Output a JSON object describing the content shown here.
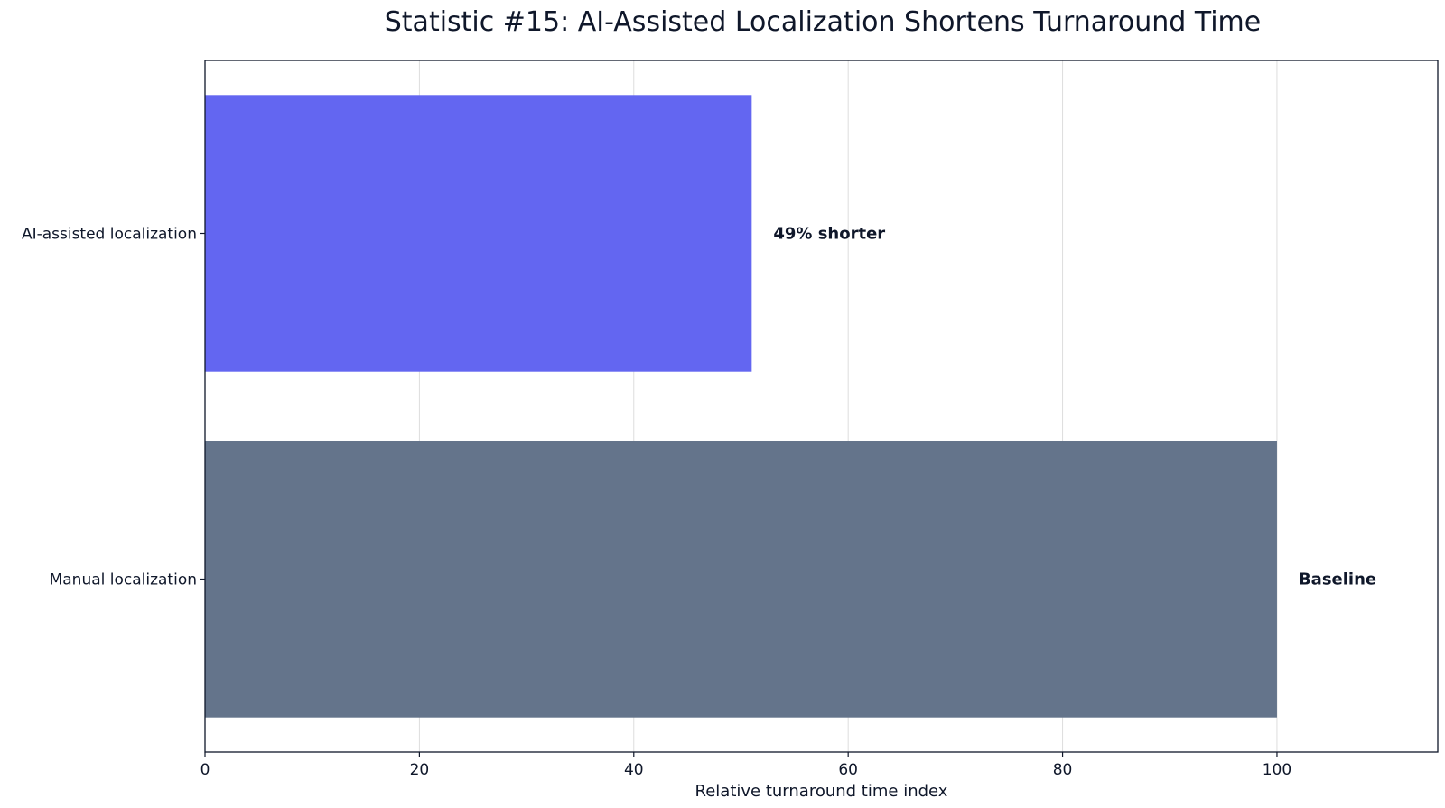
{
  "chart_data": {
    "type": "bar",
    "orientation": "horizontal",
    "title": "Statistic #15: AI-Assisted Localization Shortens Turnaround Time",
    "xlabel": "Relative turnaround time index",
    "ylabel": "",
    "categories": [
      "AI-assisted localization",
      "Manual localization"
    ],
    "values": [
      51,
      100
    ],
    "data_labels": [
      "49% shorter",
      "Baseline"
    ],
    "colors": [
      "#6366f1",
      "#64748b"
    ],
    "xlim": [
      0,
      115
    ],
    "xticks": [
      0,
      20,
      40,
      60,
      80,
      100
    ],
    "xtick_labels": [
      "0",
      "20",
      "40",
      "60",
      "80",
      "100"
    ],
    "grid": "vertical",
    "legend": "none"
  }
}
